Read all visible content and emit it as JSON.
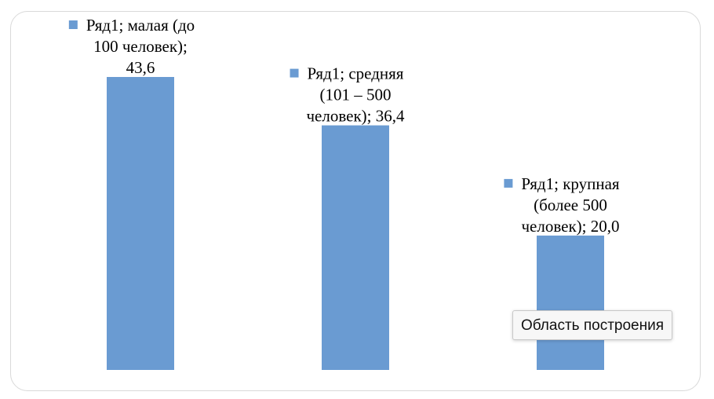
{
  "chart_data": {
    "type": "bar",
    "categories": [
      "малая (до 100 человек)",
      "средняя (101 – 500 человек)",
      "крупная (более 500 человек)"
    ],
    "series": [
      {
        "name": "Ряд1",
        "values": [
          43.6,
          36.4,
          20.0
        ],
        "color": "#6a9bd2"
      }
    ],
    "data_labels": [
      [
        "Ряд1; малая (до",
        "100 человек);",
        "43,6"
      ],
      [
        "Ряд1; средняя",
        "(101 – 500",
        "человек); 36,4"
      ],
      [
        "Ряд1; крупная",
        "(более 500",
        "человек); 20,0"
      ]
    ],
    "title": "",
    "xlabel": "",
    "ylabel": "",
    "ylim": [
      0,
      43.6
    ],
    "grid": false,
    "legend": "none",
    "legend_key_color": "#6a9bd2"
  },
  "tooltip": {
    "text": "Область построения"
  }
}
